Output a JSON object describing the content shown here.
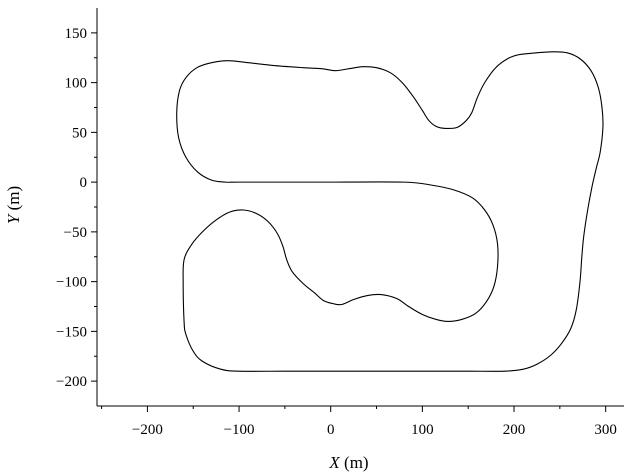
{
  "chart_data": {
    "type": "line",
    "title": "",
    "xlabel": {
      "var": "X",
      "unit": " (m)"
    },
    "ylabel": {
      "var": "Y",
      "unit": " (m)"
    },
    "xlim": [
      -255,
      320
    ],
    "ylim": [
      -225,
      175
    ],
    "xticks": [
      -200,
      -100,
      0,
      100,
      200,
      300
    ],
    "xtick_labels": [
      "−200",
      "−100",
      "0",
      "100",
      "200",
      "300"
    ],
    "yticks": [
      -200,
      -150,
      -100,
      -50,
      0,
      50,
      100,
      150
    ],
    "ytick_labels": [
      "−200",
      "−150",
      "−100",
      "−50",
      "0",
      "50",
      "100",
      "150"
    ],
    "grid": false,
    "series": [
      {
        "closed": true,
        "x": [
          0,
          80,
          110,
          135,
          155,
          168,
          177,
          182,
          182,
          178,
          170,
          158,
          143,
          128,
          115,
          100,
          85,
          72,
          55,
          40,
          25,
          12,
          2,
          -8,
          -18,
          -30,
          -42,
          -48,
          -52,
          -58,
          -68,
          -80,
          -95,
          -110,
          -125,
          -140,
          -152,
          -160,
          -161,
          -160,
          -158,
          -150,
          -140,
          -120,
          -100,
          -50,
          0,
          50,
          100,
          150,
          190,
          210,
          225,
          240,
          252,
          262,
          268,
          272,
          274,
          276,
          280,
          285,
          290,
          294,
          297,
          296,
          292,
          284,
          272,
          258,
          242,
          225,
          205,
          193,
          180,
          168,
          160,
          154,
          148,
          138,
          125,
          115,
          107,
          100,
          90,
          78,
          65,
          50,
          35,
          20,
          5,
          -10,
          -30,
          -60,
          -90,
          -112,
          -130,
          -146,
          -158,
          -165,
          -168,
          -166,
          -158,
          -145,
          -130,
          -115,
          -100,
          -50,
          0
        ],
        "y": [
          0,
          0,
          -3,
          -8,
          -16,
          -28,
          -43,
          -62,
          -85,
          -105,
          -120,
          -132,
          -138,
          -140,
          -138,
          -133,
          -125,
          -117,
          -113,
          -114,
          -118,
          -123,
          -122,
          -119,
          -111,
          -102,
          -90,
          -78,
          -65,
          -52,
          -40,
          -32,
          -28,
          -30,
          -38,
          -50,
          -63,
          -78,
          -100,
          -140,
          -153,
          -170,
          -180,
          -188,
          -190,
          -190,
          -190,
          -190,
          -190,
          -190,
          -190,
          -188,
          -183,
          -174,
          -162,
          -147,
          -128,
          -100,
          -75,
          -55,
          -30,
          -5,
          15,
          30,
          55,
          75,
          95,
          112,
          124,
          130,
          131,
          130,
          128,
          124,
          115,
          100,
          85,
          70,
          62,
          55,
          54,
          56,
          62,
          72,
          86,
          100,
          110,
          115,
          116,
          114,
          112,
          114,
          115,
          117,
          120,
          122,
          120,
          115,
          105,
          92,
          70,
          45,
          25,
          10,
          2,
          0,
          0,
          0,
          0
        ]
      }
    ]
  }
}
